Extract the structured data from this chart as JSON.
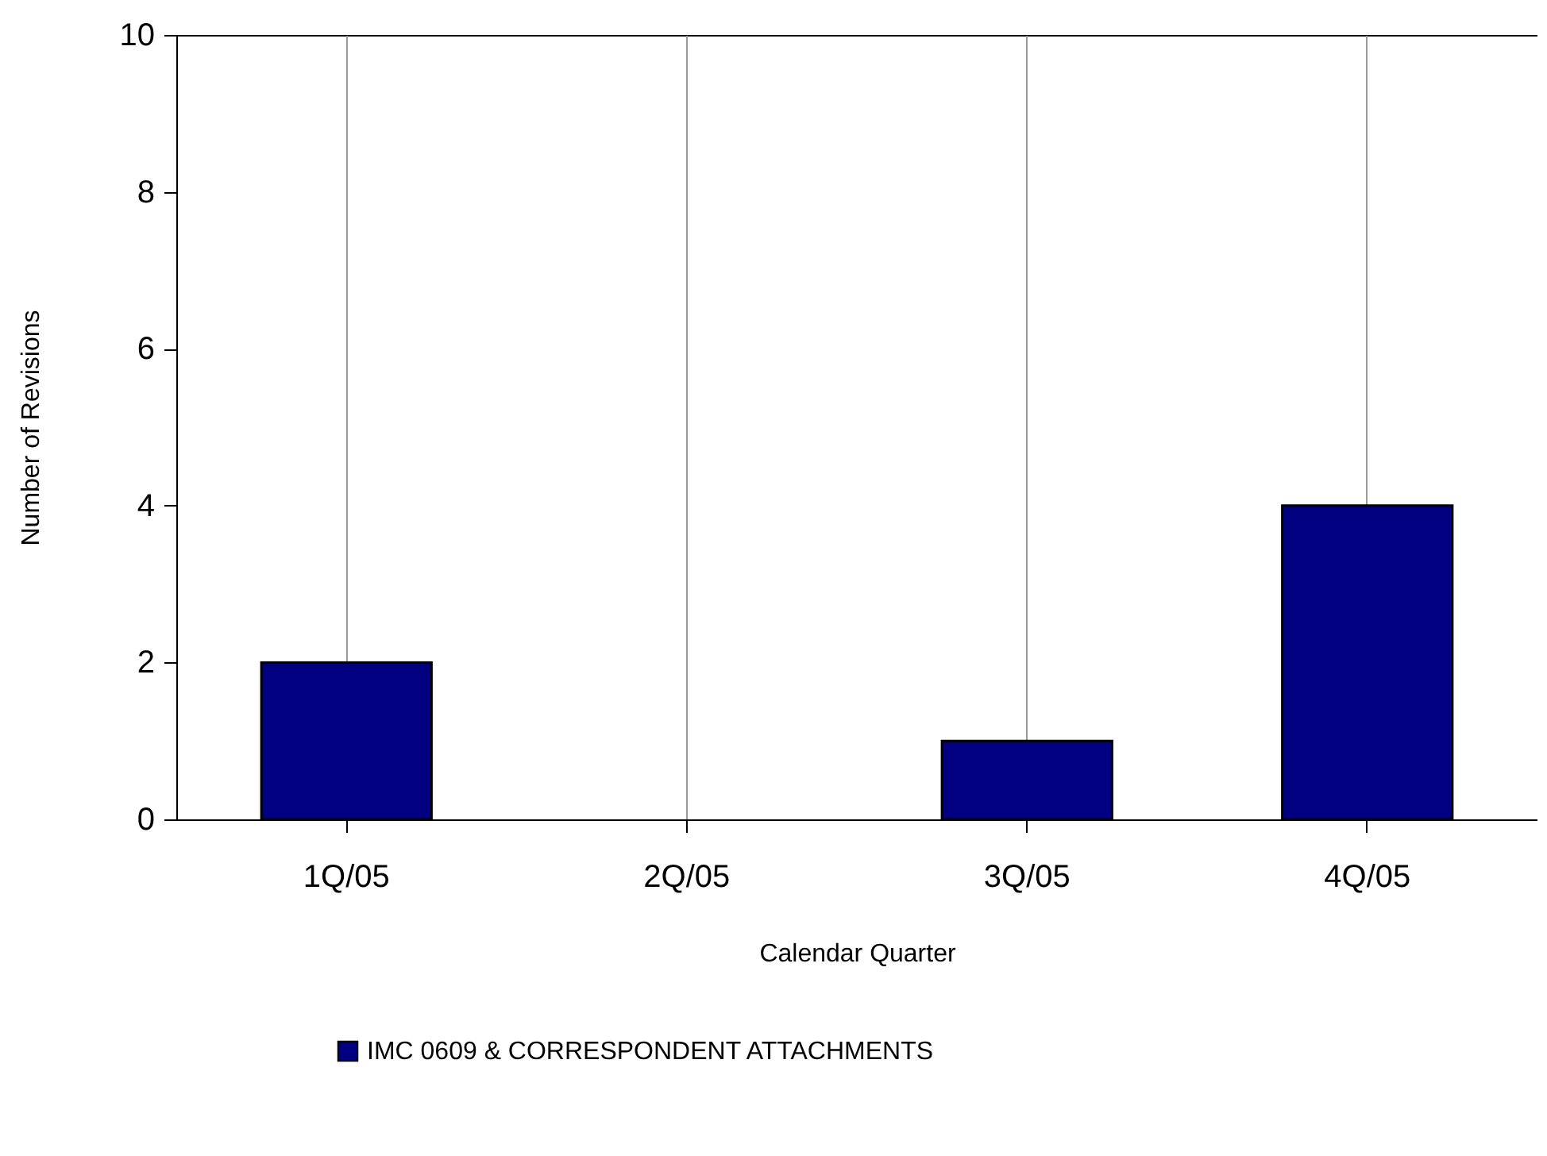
{
  "chart_data": {
    "type": "bar",
    "xlabel": "Calendar Quarter",
    "ylabel": "Number of Revisions",
    "categories": [
      "1Q/05",
      "2Q/05",
      "3Q/05",
      "4Q/05"
    ],
    "series": [
      {
        "name": "IMC 0609 & CORRESPONDENT ATTACHMENTS",
        "color": "#000080",
        "values": [
          2,
          0,
          1,
          4
        ]
      }
    ],
    "ylim": [
      0,
      10
    ],
    "yticks": [
      0,
      2,
      4,
      6,
      8,
      10
    ],
    "grid": "x",
    "legend": "bottom"
  }
}
